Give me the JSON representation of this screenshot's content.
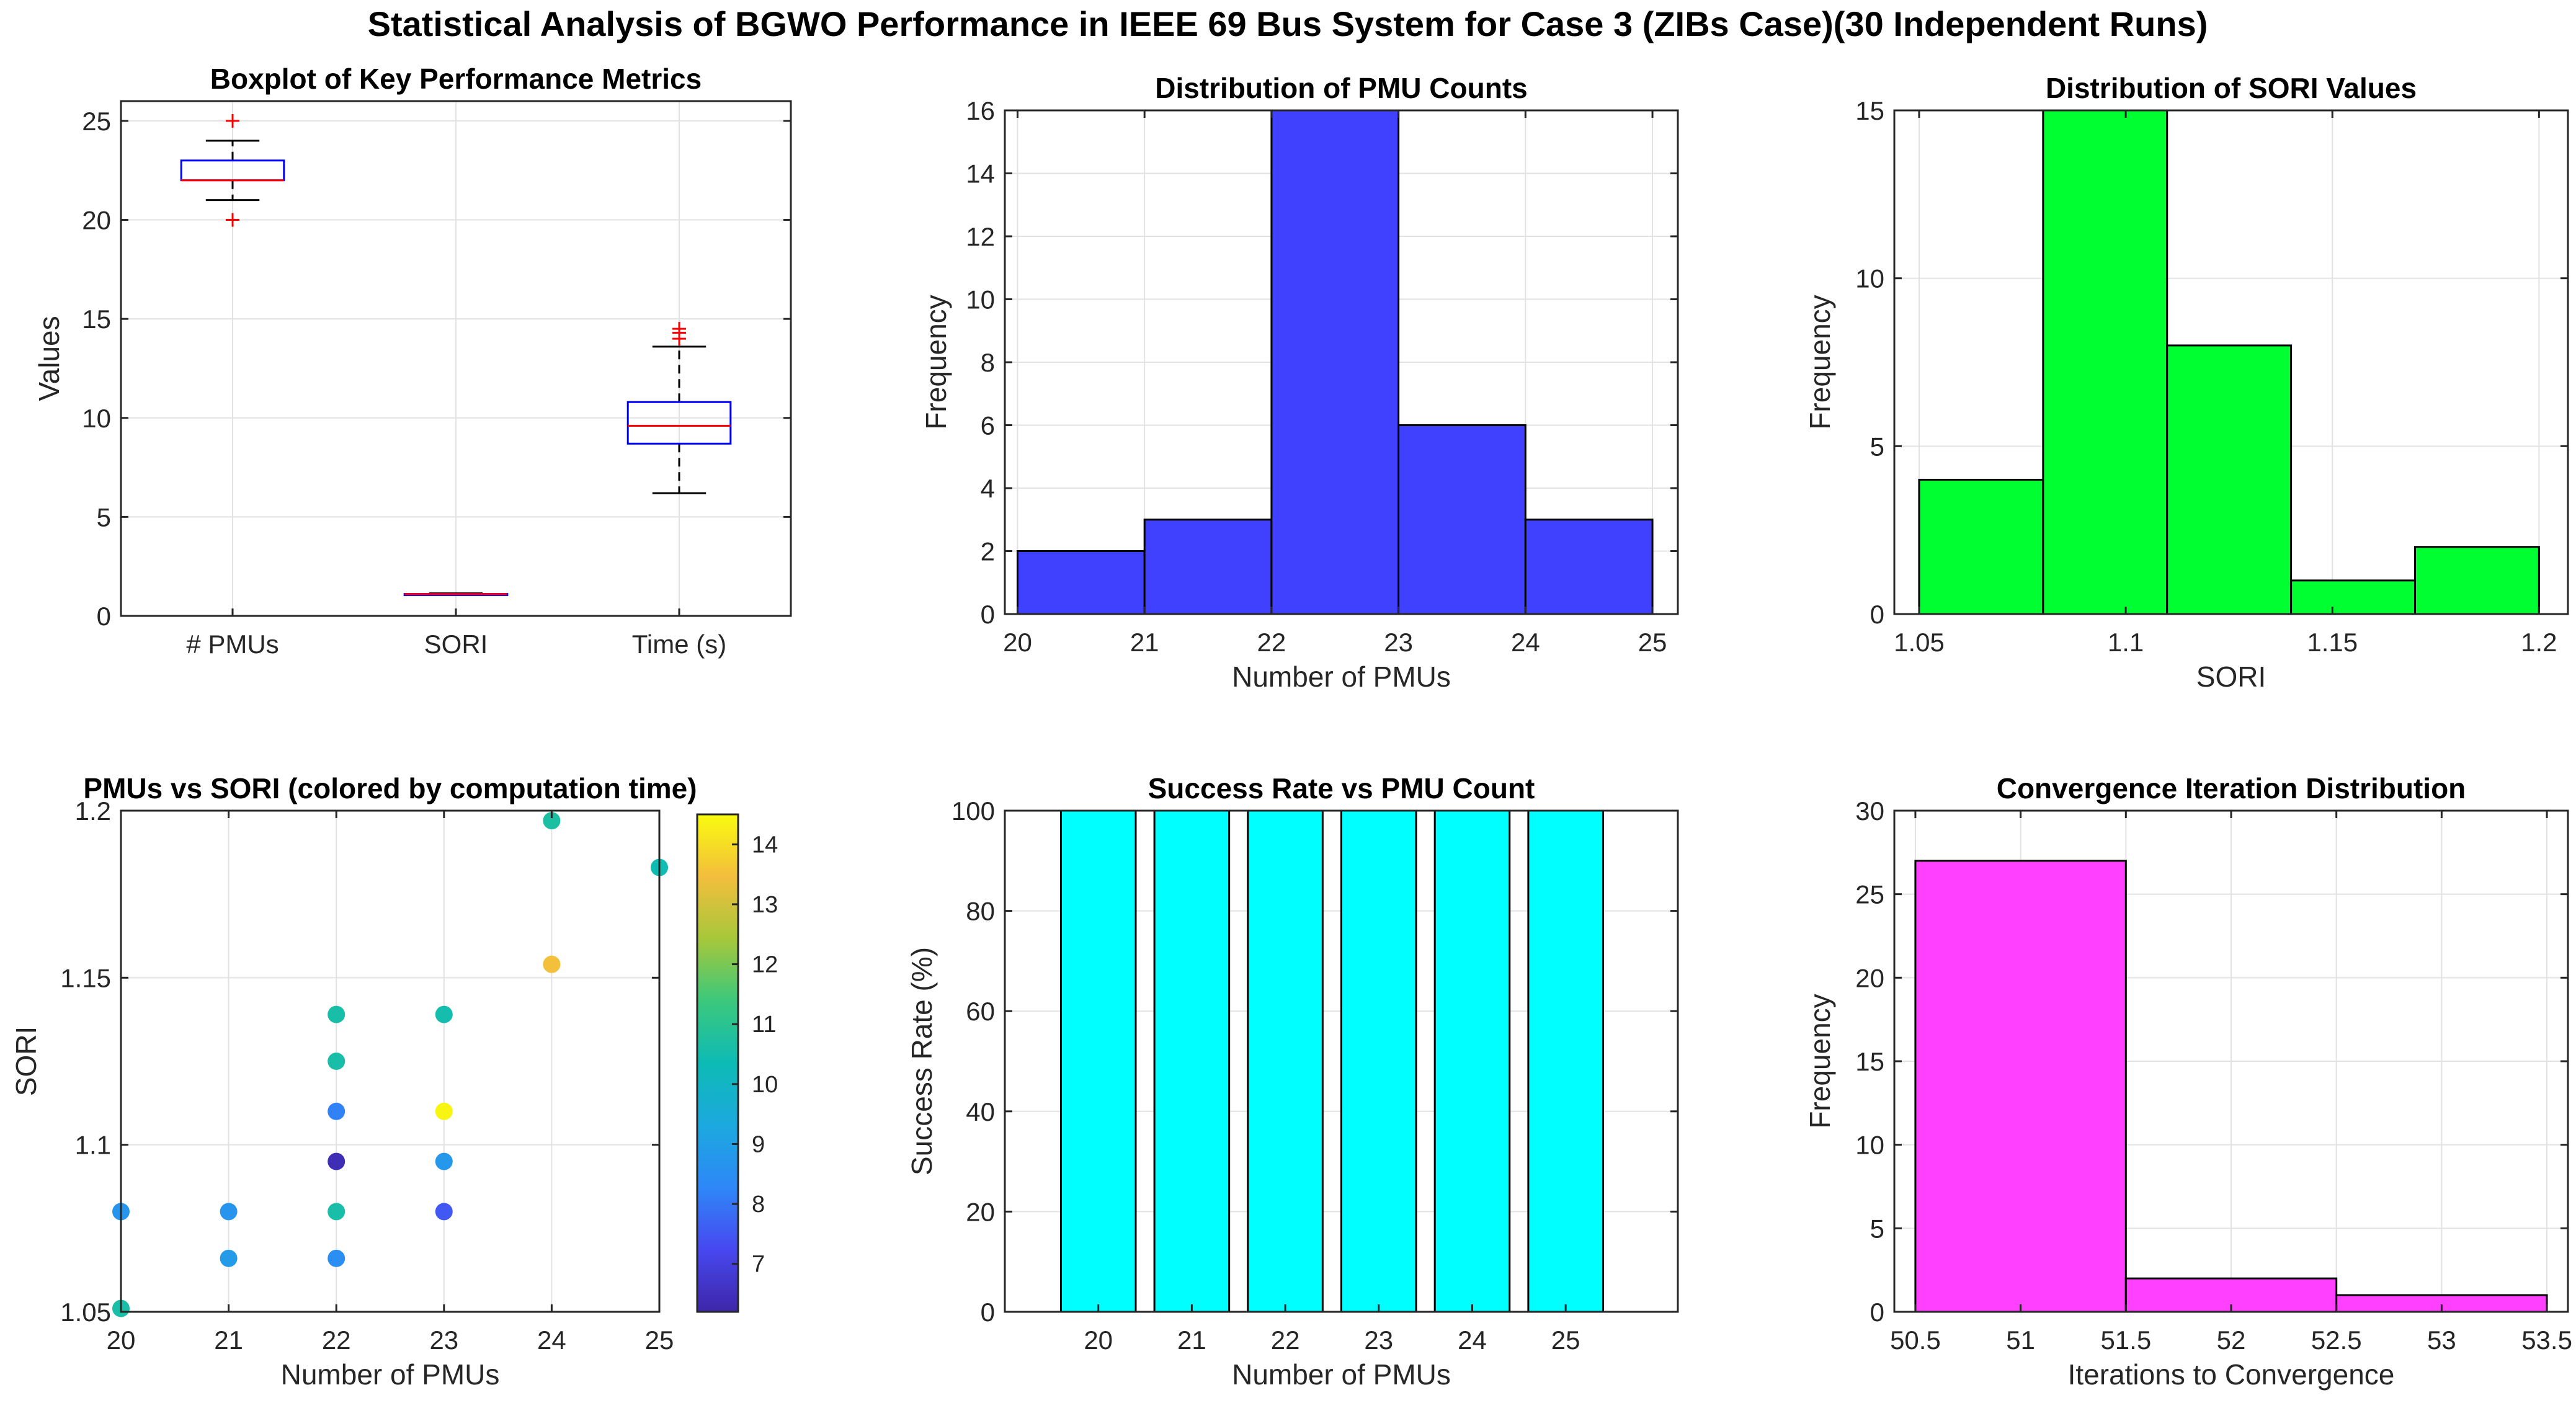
{
  "figure_title": "Statistical Analysis of BGWO Performance in IEEE 69 Bus System for Case 3 (ZIBs Case)(30 Independent Runs)",
  "colors": {
    "pmu_bars": "#4040ff",
    "sori_bars": "#00ff30",
    "success_bars": "#00ffff",
    "iter_bars": "#ff40ff",
    "box_edge": "#0000ff",
    "box_median": "#ff0000",
    "outlier": "#ff0000",
    "whisker": "#000000",
    "grid": "#e2e2e2"
  },
  "chart_data": [
    {
      "id": "boxplot",
      "type": "box",
      "title": "Boxplot of Key Performance Metrics",
      "xlabel": "",
      "ylabel": "Values",
      "ylim": [
        0,
        26
      ],
      "yticks": [
        0,
        5,
        10,
        15,
        20,
        25
      ],
      "categories": [
        "# PMUs",
        "SORI",
        "Time (s)"
      ],
      "boxes": [
        {
          "name": "# PMUs",
          "whisker_low": 21,
          "q1": 22,
          "median": 22,
          "q3": 23,
          "whisker_high": 24,
          "outliers": [
            20,
            25
          ]
        },
        {
          "name": "SORI",
          "whisker_low": 1.05,
          "q1": 1.08,
          "median": 1.1,
          "q3": 1.11,
          "whisker_high": 1.14,
          "outliers": []
        },
        {
          "name": "Time (s)",
          "whisker_low": 6.2,
          "q1": 8.7,
          "median": 9.6,
          "q3": 10.8,
          "whisker_high": 13.6,
          "outliers": [
            14.0,
            14.3,
            14.5
          ]
        }
      ]
    },
    {
      "id": "pmu_hist",
      "type": "bar",
      "title": "Distribution of PMU Counts",
      "xlabel": "Number of PMUs",
      "ylabel": "Frequency",
      "xlim": [
        19.9,
        25.2
      ],
      "xticks": [
        20,
        21,
        22,
        23,
        24,
        25
      ],
      "ylim": [
        0,
        16
      ],
      "yticks": [
        0,
        2,
        4,
        6,
        8,
        10,
        12,
        14,
        16
      ],
      "bin_edges": [
        20,
        21,
        22,
        23,
        24,
        25
      ],
      "counts": [
        2,
        3,
        16,
        6,
        3
      ]
    },
    {
      "id": "sori_hist",
      "type": "bar",
      "title": "Distribution of SORI Values",
      "xlabel": "SORI",
      "ylabel": "Frequency",
      "xlim": [
        1.044,
        1.207
      ],
      "xticks": [
        1.05,
        1.1,
        1.15,
        1.2
      ],
      "xtick_labels": [
        "1.05",
        "1.1",
        "1.15",
        "1.2"
      ],
      "ylim": [
        0,
        15
      ],
      "yticks": [
        0,
        5,
        10,
        15
      ],
      "bin_edges": [
        1.05,
        1.08,
        1.11,
        1.14,
        1.17,
        1.2
      ],
      "counts": [
        4,
        15,
        8,
        1,
        2
      ]
    },
    {
      "id": "scatter",
      "type": "scatter",
      "title": "PMUs vs SORI (colored by computation time)",
      "xlabel": "Number of PMUs",
      "ylabel": "SORI",
      "xlim": [
        20,
        25
      ],
      "xticks": [
        20,
        21,
        22,
        23,
        24,
        25
      ],
      "ylim": [
        1.05,
        1.2
      ],
      "yticks": [
        1.05,
        1.1,
        1.15,
        1.2
      ],
      "ytick_labels": [
        "1.05",
        "1.1",
        "1.15",
        "1.2"
      ],
      "colorbar": {
        "min": 6.2,
        "max": 14.5,
        "ticks": [
          7,
          8,
          9,
          10,
          11,
          12,
          13,
          14
        ]
      },
      "points": [
        {
          "x": 20,
          "y": 1.08,
          "t": 8.7
        },
        {
          "x": 20,
          "y": 1.051,
          "t": 10.6
        },
        {
          "x": 21,
          "y": 1.08,
          "t": 8.7
        },
        {
          "x": 21,
          "y": 1.066,
          "t": 8.9
        },
        {
          "x": 22,
          "y": 1.139,
          "t": 10.6
        },
        {
          "x": 22,
          "y": 1.125,
          "t": 10.6
        },
        {
          "x": 22,
          "y": 1.11,
          "t": 8.2
        },
        {
          "x": 22,
          "y": 1.095,
          "t": 6.4
        },
        {
          "x": 22,
          "y": 1.08,
          "t": 10.6
        },
        {
          "x": 22,
          "y": 1.066,
          "t": 8.5
        },
        {
          "x": 23,
          "y": 1.139,
          "t": 10.5
        },
        {
          "x": 23,
          "y": 1.11,
          "t": 14.4
        },
        {
          "x": 23,
          "y": 1.095,
          "t": 8.8
        },
        {
          "x": 23,
          "y": 1.08,
          "t": 7.5
        },
        {
          "x": 24,
          "y": 1.197,
          "t": 10.7
        },
        {
          "x": 24,
          "y": 1.154,
          "t": 13.5
        },
        {
          "x": 25,
          "y": 1.183,
          "t": 10.4
        }
      ]
    },
    {
      "id": "success",
      "type": "bar",
      "title": "Success Rate vs PMU Count",
      "xlabel": "Number of PMUs",
      "ylabel": "Success Rate (%)",
      "xlim": [
        19,
        26.2
      ],
      "categories": [
        "20",
        "21",
        "22",
        "23",
        "24",
        "25"
      ],
      "values": [
        100,
        100,
        100,
        100,
        100,
        100
      ],
      "ylim": [
        0,
        100
      ],
      "yticks": [
        0,
        20,
        40,
        60,
        80,
        100
      ]
    },
    {
      "id": "iter_hist",
      "type": "bar",
      "title": "Convergence Iteration Distribution",
      "xlabel": "Iterations to Convergence",
      "ylabel": "Frequency",
      "xlim": [
        50.4,
        53.6
      ],
      "xticks": [
        50.5,
        51,
        51.5,
        52,
        52.5,
        53,
        53.5
      ],
      "xtick_labels": [
        "50.5",
        "51",
        "51.5",
        "52",
        "52.5",
        "53",
        "53.5"
      ],
      "ylim": [
        0,
        30
      ],
      "yticks": [
        0,
        5,
        10,
        15,
        20,
        25,
        30
      ],
      "bin_edges": [
        50.5,
        51.5,
        52.5,
        53.5
      ],
      "counts": [
        27,
        2,
        1
      ]
    }
  ]
}
